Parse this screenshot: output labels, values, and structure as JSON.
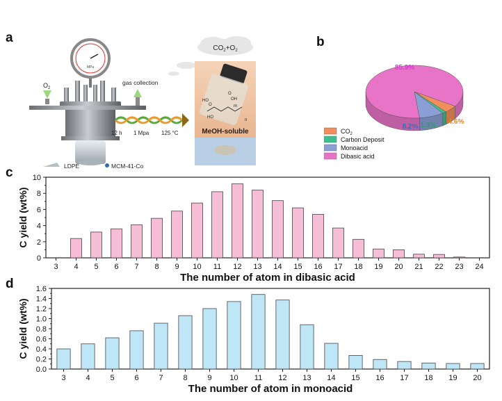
{
  "panels": {
    "a": "a",
    "b": "b",
    "c": "c",
    "d": "d"
  },
  "schematic": {
    "gauge_label": "MPa",
    "o2_label": "O",
    "o2_sub": "2",
    "gas_collection_label": "gas collection",
    "cloud_label_co": "CO",
    "cloud_label_sub": "2",
    "cloud_label_rest": "+O",
    "cloud_label_sub2": "2",
    "conditions": [
      "12 h",
      "1 Mpa",
      "125 °C"
    ],
    "vial_label": "MeOH-soluble",
    "structure_labels": [
      "HO",
      "O",
      "OH",
      "O",
      "HO",
      "m",
      "n"
    ],
    "legend_ldpe": "LDPE",
    "legend_catalyst": "MCM-41-Co",
    "colors": {
      "arrow": "#8a6a1a",
      "helix_green": "#5aa83c",
      "helix_orange": "#e79a2b",
      "vial_bg": "#f3c9a8",
      "vial_bottom": "#b8cfe6"
    }
  },
  "chart_data": [
    {
      "type": "pie",
      "panel": "b",
      "categories": [
        "CO2",
        "Carbon Deposit",
        "Monoacid",
        "Dibasic acid"
      ],
      "legend_labels": [
        {
          "text": "CO",
          "sub": "2"
        },
        {
          "text": "Carbon Deposit",
          "sub": ""
        },
        {
          "text": "Monoacid",
          "sub": ""
        },
        {
          "text": "Dibasic acid",
          "sub": ""
        }
      ],
      "values": [
        4.6,
        1.3,
        8.2,
        85.9
      ],
      "labels": [
        "4.6%",
        "1.3%",
        "8.2%",
        "85.9%"
      ],
      "colors": [
        "#f28e5b",
        "#3fbf8f",
        "#8b9fd6",
        "#e874c8"
      ],
      "label_colors": [
        "#e0882e",
        "#2e9d6f",
        "#3a6fb3",
        "#d63ad1"
      ],
      "legend_position": "bottom-left"
    },
    {
      "type": "bar",
      "panel": "c",
      "categories": [
        "3",
        "4",
        "5",
        "6",
        "7",
        "8",
        "9",
        "10",
        "11",
        "12",
        "13",
        "14",
        "15",
        "16",
        "17",
        "18",
        "19",
        "20",
        "21",
        "22",
        "23",
        "24"
      ],
      "values": [
        0,
        2.4,
        3.2,
        3.6,
        4.1,
        4.9,
        5.8,
        6.8,
        8.2,
        9.2,
        8.4,
        7.1,
        6.2,
        5.4,
        3.7,
        2.3,
        1.1,
        1.0,
        0.45,
        0.42,
        0.1,
        0
      ],
      "xlabel": "The number of atom in dibasic acid",
      "ylabel": "C yield (wt%)",
      "ylim": [
        0,
        10
      ],
      "yticks": [
        "0",
        "2",
        "4",
        "6",
        "8",
        "10"
      ],
      "grid": false,
      "bar_color": "#f6bdd7"
    },
    {
      "type": "bar",
      "panel": "d",
      "categories": [
        "3",
        "4",
        "5",
        "6",
        "7",
        "8",
        "9",
        "10",
        "11",
        "12",
        "13",
        "14",
        "15",
        "16",
        "17",
        "18",
        "19",
        "20"
      ],
      "values": [
        0.4,
        0.5,
        0.62,
        0.76,
        0.91,
        1.06,
        1.2,
        1.34,
        1.48,
        1.37,
        0.88,
        0.51,
        0.27,
        0.19,
        0.15,
        0.12,
        0.11,
        0.11
      ],
      "xlabel": "The number of atom in monoacid",
      "ylabel": "C yield (wt%)",
      "ylim": [
        0,
        1.6
      ],
      "yticks": [
        "0.0",
        "0.2",
        "0.4",
        "0.6",
        "0.8",
        "1.0",
        "1.2",
        "1.4",
        "1.6"
      ],
      "grid": false,
      "bar_color": "#bfe6f7"
    }
  ]
}
